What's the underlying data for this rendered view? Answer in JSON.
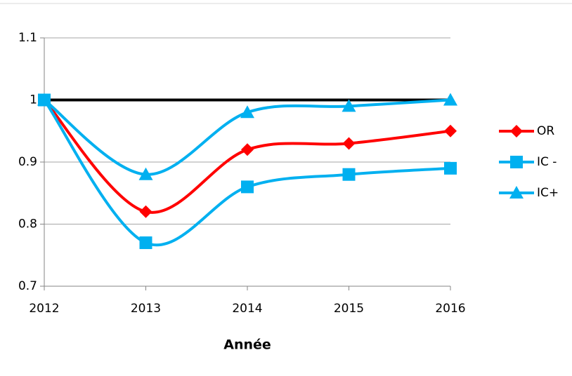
{
  "chart_data": {
    "type": "line",
    "x_label": "Année",
    "x": [
      2012,
      2013,
      2014,
      2015,
      2016
    ],
    "xlim": [
      2012,
      2016
    ],
    "xticks": [
      2012,
      2013,
      2014,
      2015,
      2016
    ],
    "ylim": [
      0.7,
      1.1
    ],
    "yticks": [
      0.7,
      0.8,
      0.9,
      1,
      1.1
    ],
    "grid": true,
    "smooth": true,
    "legend": "right",
    "reference_line": {
      "value": 1,
      "color": "#000000"
    },
    "series": [
      {
        "name": "OR",
        "color": "#ff0000",
        "marker": "diamond",
        "values": [
          1,
          0.82,
          0.92,
          0.93,
          0.95
        ]
      },
      {
        "name": "IC -",
        "color": "#00b0f0",
        "marker": "square",
        "values": [
          1,
          0.77,
          0.86,
          0.88,
          0.89
        ]
      },
      {
        "name": "IC+",
        "color": "#00b0f0",
        "marker": "triangle",
        "values": [
          1,
          0.88,
          0.98,
          0.99,
          1.0
        ]
      }
    ]
  }
}
